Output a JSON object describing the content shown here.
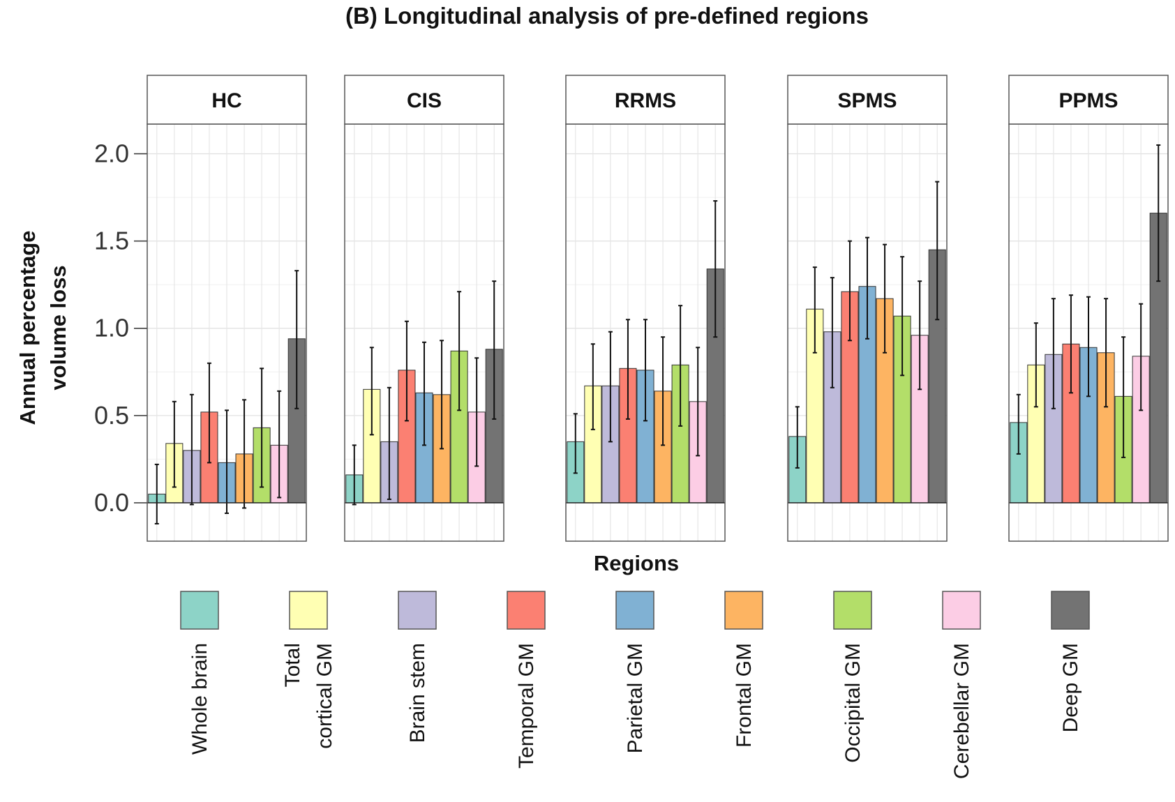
{
  "chart_data": {
    "type": "bar",
    "title": "(B) Longitudinal analysis of pre-defined regions",
    "xlabel": "Regions",
    "ylabel_lines": [
      "Annual percentage",
      "volume loss"
    ],
    "ylim": [
      -0.22,
      2.17
    ],
    "yticks": [
      "0.0",
      "0.5",
      "1.0",
      "1.5",
      "2.0"
    ],
    "grid": true,
    "legend_position": "bottom",
    "categories": [
      {
        "label": [
          "Whole brain"
        ],
        "color": "#8dd3c7"
      },
      {
        "label": [
          "Total",
          "cortical GM"
        ],
        "color": "#ffffb3"
      },
      {
        "label": [
          "Brain stem"
        ],
        "color": "#bebada"
      },
      {
        "label": [
          "Temporal GM"
        ],
        "color": "#fb8072"
      },
      {
        "label": [
          "Parietal GM"
        ],
        "color": "#80b1d3"
      },
      {
        "label": [
          "Frontal GM"
        ],
        "color": "#fdb462"
      },
      {
        "label": [
          "Occipital GM"
        ],
        "color": "#b3de69"
      },
      {
        "label": [
          "Cerebellar GM"
        ],
        "color": "#fccde5"
      },
      {
        "label": [
          "Deep GM"
        ],
        "color": "#737373"
      }
    ],
    "panels": [
      {
        "name": "HC",
        "values": [
          0.05,
          0.34,
          0.3,
          0.52,
          0.23,
          0.28,
          0.43,
          0.33,
          0.94
        ],
        "err_low": [
          -0.12,
          0.09,
          -0.01,
          0.23,
          -0.06,
          -0.03,
          0.09,
          0.03,
          0.54
        ],
        "err_high": [
          0.22,
          0.58,
          0.62,
          0.8,
          0.53,
          0.59,
          0.77,
          0.64,
          1.33
        ]
      },
      {
        "name": "CIS",
        "values": [
          0.16,
          0.65,
          0.35,
          0.76,
          0.63,
          0.62,
          0.87,
          0.52,
          0.88
        ],
        "err_low": [
          -0.01,
          0.39,
          0.02,
          0.47,
          0.33,
          0.31,
          0.53,
          0.21,
          0.48
        ],
        "err_high": [
          0.33,
          0.89,
          0.66,
          1.04,
          0.92,
          0.93,
          1.21,
          0.83,
          1.27
        ]
      },
      {
        "name": "RRMS",
        "values": [
          0.35,
          0.67,
          0.67,
          0.77,
          0.76,
          0.64,
          0.79,
          0.58,
          1.34
        ],
        "err_low": [
          0.17,
          0.42,
          0.35,
          0.48,
          0.47,
          0.33,
          0.44,
          0.27,
          0.95
        ],
        "err_high": [
          0.51,
          0.91,
          0.98,
          1.05,
          1.05,
          0.95,
          1.13,
          0.89,
          1.73
        ]
      },
      {
        "name": "SPMS",
        "values": [
          0.38,
          1.11,
          0.98,
          1.21,
          1.24,
          1.17,
          1.07,
          0.96,
          1.45
        ],
        "err_low": [
          0.2,
          0.86,
          0.66,
          0.93,
          0.94,
          0.86,
          0.73,
          0.65,
          1.05
        ],
        "err_high": [
          0.55,
          1.35,
          1.29,
          1.5,
          1.52,
          1.48,
          1.41,
          1.27,
          1.84
        ]
      },
      {
        "name": "PPMS",
        "values": [
          0.46,
          0.79,
          0.85,
          0.91,
          0.89,
          0.86,
          0.61,
          0.84,
          1.66
        ],
        "err_low": [
          0.28,
          0.55,
          0.54,
          0.63,
          0.61,
          0.55,
          0.26,
          0.53,
          1.27
        ],
        "err_high": [
          0.62,
          1.03,
          1.17,
          1.19,
          1.18,
          1.17,
          0.95,
          1.14,
          2.05
        ]
      }
    ]
  }
}
